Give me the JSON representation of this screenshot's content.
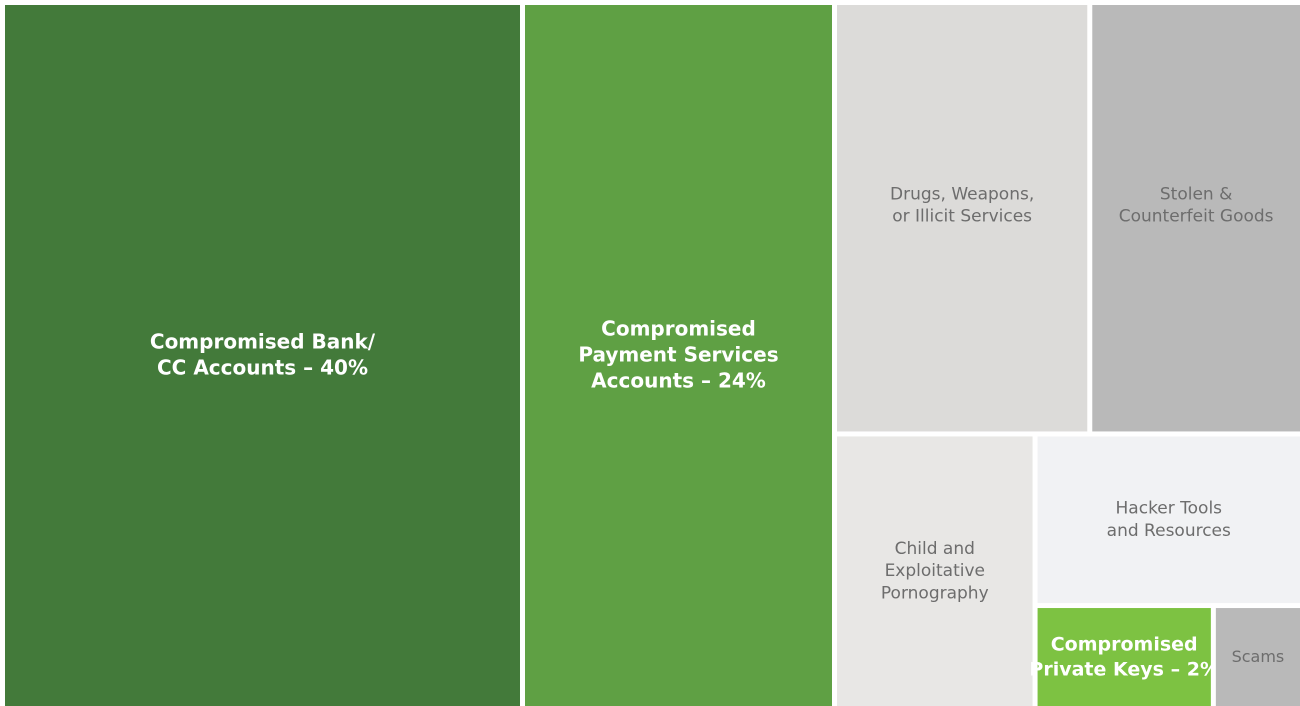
{
  "chart_data": {
    "type": "treemap",
    "labels": [
      [
        "Compromised Bank/",
        "CC Accounts – 40%"
      ],
      [
        "Compromised",
        "Payment Services",
        "Accounts – 24%"
      ],
      [
        "Drugs, Weapons,",
        "or Illicit Services"
      ],
      [
        "Stolen &",
        "Counterfeit Goods"
      ],
      [
        "Child and",
        "Exploitative",
        "Pornography"
      ],
      [
        "Hacker Tools",
        "and Resources"
      ],
      [
        "Compromised",
        "Private Keys – 2%"
      ],
      [
        "Scams"
      ]
    ],
    "values": [
      40,
      24,
      12,
      10,
      6,
      5,
      2,
      1
    ],
    "colors": [
      "#437a3a",
      "#5fa044",
      "#dcdbd9",
      "#b9b9b9",
      "#e8e7e5",
      "#f1f2f4",
      "#7dc242",
      "#b9b9b9"
    ]
  }
}
